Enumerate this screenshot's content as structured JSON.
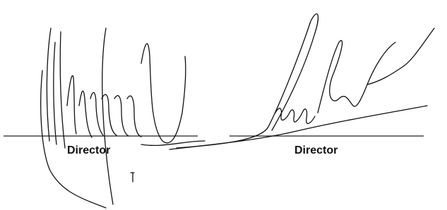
{
  "signatures": [
    {
      "label": "Director"
    },
    {
      "label": "Director"
    }
  ]
}
